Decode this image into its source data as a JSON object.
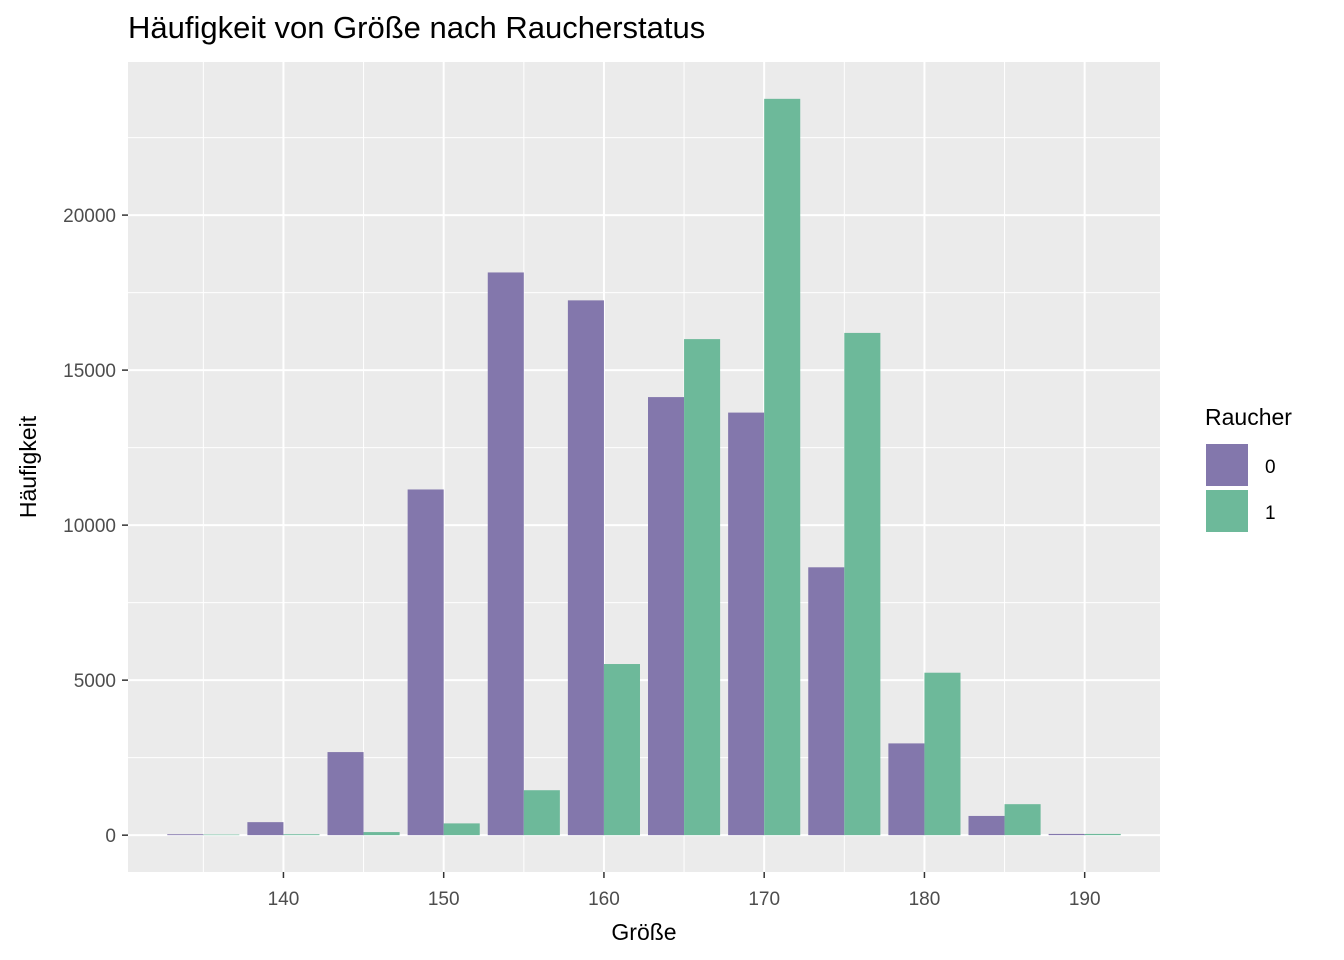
{
  "title": "Häufigkeit von Größe nach Raucherstatus",
  "colors": {
    "0": "#8377AC",
    "1": "#6DB99A",
    "panel": "#EBEBEB",
    "grid": "#FFFFFF"
  },
  "chart_data": {
    "type": "bar",
    "title": "Häufigkeit von Größe nach Raucherstatus",
    "xlabel": "Größe",
    "ylabel": "Häufigkeit",
    "x": [
      135,
      140,
      145,
      150,
      155,
      160,
      165,
      170,
      175,
      180,
      185,
      190
    ],
    "bin_width": 5,
    "series": [
      {
        "name": "0",
        "values": [
          30,
          420,
          2680,
          11150,
          18150,
          17250,
          14130,
          13630,
          8640,
          2960,
          620,
          40
        ]
      },
      {
        "name": "1",
        "values": [
          20,
          30,
          100,
          380,
          1450,
          5520,
          16000,
          23750,
          16200,
          5240,
          1000,
          40
        ]
      }
    ],
    "xticks": [
      "140",
      "150",
      "160",
      "170",
      "180",
      "190"
    ],
    "yticks": [
      "0",
      "5000",
      "10000",
      "15000",
      "20000"
    ],
    "xlim": [
      130.3,
      194.7
    ],
    "ylim": [
      -1188,
      24938
    ],
    "grid": true,
    "legend": {
      "title": "Raucher",
      "position": "right",
      "entries": [
        "0",
        "1"
      ]
    }
  }
}
